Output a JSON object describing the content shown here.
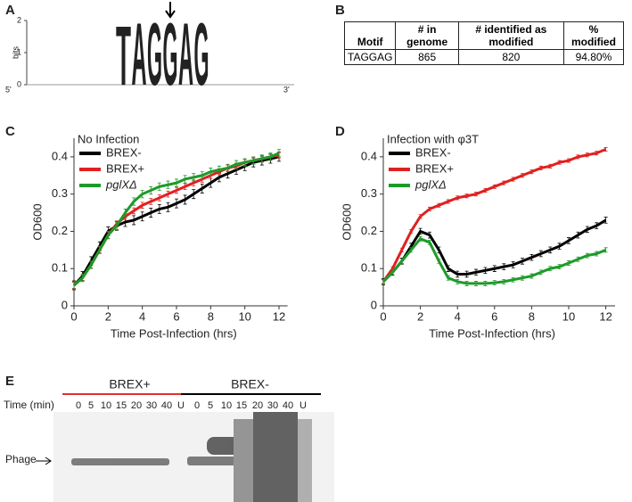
{
  "panel_labels": [
    "A",
    "B",
    "C",
    "D",
    "E"
  ],
  "logo": {
    "y_label": "bits",
    "ylim": [
      0,
      2
    ],
    "yticks": [
      0,
      1,
      2
    ],
    "letters": [
      "T",
      "A",
      "G",
      "G",
      "A",
      "G"
    ],
    "heights": [
      1.9,
      2,
      2,
      2,
      2,
      2
    ],
    "colors": [
      "#d62728",
      "#2ca02c",
      "#f0a500",
      "#f0a500",
      "#2ca02c",
      "#f0a500"
    ],
    "start_label": "5'",
    "end_label": "3'"
  },
  "table": {
    "header": [
      "Motif",
      "# in genome",
      "# identified as modified",
      "% modified"
    ],
    "rows": [
      [
        "TAGGAG",
        "865",
        "820",
        "94.80%"
      ]
    ]
  },
  "chart_data": [
    {
      "type": "line",
      "title": "No Infection",
      "y_label": "OD600",
      "x_label": "Time Post-Infection (hrs)",
      "xlim": [
        0,
        12.5
      ],
      "xticks": [
        0,
        2,
        4,
        6,
        8,
        10,
        12
      ],
      "ylim": [
        0,
        0.45
      ],
      "yticks": [
        0,
        0.1,
        0.2,
        0.3,
        0.4
      ],
      "x": [
        0,
        0.5,
        1,
        1.5,
        2,
        2.5,
        3,
        3.5,
        4,
        4.5,
        5,
        5.5,
        6,
        6.5,
        7,
        7.5,
        8,
        8.5,
        9,
        9.5,
        10,
        10.5,
        11,
        11.5,
        12
      ],
      "series": [
        {
          "name": "BREX-",
          "color": "#000000",
          "error": 0.012,
          "values": [
            0.055,
            0.08,
            0.12,
            0.16,
            0.2,
            0.215,
            0.225,
            0.23,
            0.24,
            0.25,
            0.26,
            0.265,
            0.275,
            0.285,
            0.3,
            0.315,
            0.33,
            0.345,
            0.355,
            0.365,
            0.375,
            0.385,
            0.39,
            0.395,
            0.4
          ]
        },
        {
          "name": "BREX+",
          "color": "#e02020",
          "error": 0.008,
          "values": [
            0.055,
            0.075,
            0.11,
            0.15,
            0.19,
            0.22,
            0.24,
            0.255,
            0.27,
            0.28,
            0.29,
            0.3,
            0.31,
            0.32,
            0.33,
            0.34,
            0.35,
            0.36,
            0.37,
            0.375,
            0.385,
            0.39,
            0.395,
            0.4,
            0.405
          ]
        },
        {
          "name": "pglXΔ",
          "color": "#1e9a2a",
          "error": 0.01,
          "values": [
            0.055,
            0.075,
            0.11,
            0.15,
            0.19,
            0.215,
            0.25,
            0.28,
            0.3,
            0.31,
            0.32,
            0.325,
            0.33,
            0.34,
            0.345,
            0.35,
            0.36,
            0.365,
            0.37,
            0.38,
            0.385,
            0.39,
            0.395,
            0.4,
            0.41
          ]
        }
      ]
    },
    {
      "type": "line",
      "title": "Infection with φ3T",
      "y_label": "OD600",
      "x_label": "Time Post-Infection (hrs)",
      "xlim": [
        0,
        12.5
      ],
      "xticks": [
        0,
        2,
        4,
        6,
        8,
        10,
        12
      ],
      "ylim": [
        0,
        0.45
      ],
      "yticks": [
        0,
        0.1,
        0.2,
        0.3,
        0.4
      ],
      "x": [
        0,
        0.5,
        1,
        1.5,
        2,
        2.5,
        3,
        3.5,
        4,
        4.5,
        5,
        5.5,
        6,
        6.5,
        7,
        7.5,
        8,
        8.5,
        9,
        9.5,
        10,
        10.5,
        11,
        11.5,
        12
      ],
      "series": [
        {
          "name": "BREX-",
          "color": "#000000",
          "error": 0.008,
          "values": [
            0.065,
            0.09,
            0.12,
            0.16,
            0.2,
            0.19,
            0.15,
            0.1,
            0.085,
            0.085,
            0.09,
            0.095,
            0.1,
            0.105,
            0.11,
            0.12,
            0.13,
            0.14,
            0.15,
            0.16,
            0.175,
            0.19,
            0.205,
            0.215,
            0.23
          ]
        },
        {
          "name": "BREX+",
          "color": "#e02020",
          "error": 0.005,
          "values": [
            0.065,
            0.1,
            0.15,
            0.2,
            0.24,
            0.26,
            0.27,
            0.28,
            0.29,
            0.295,
            0.3,
            0.31,
            0.32,
            0.33,
            0.34,
            0.35,
            0.36,
            0.37,
            0.375,
            0.385,
            0.39,
            0.4,
            0.405,
            0.41,
            0.42
          ]
        },
        {
          "name": "pglXΔ",
          "color": "#1e9a2a",
          "error": 0.006,
          "values": [
            0.065,
            0.09,
            0.12,
            0.15,
            0.18,
            0.17,
            0.12,
            0.075,
            0.065,
            0.06,
            0.06,
            0.06,
            0.062,
            0.065,
            0.07,
            0.075,
            0.08,
            0.09,
            0.1,
            0.105,
            0.115,
            0.125,
            0.135,
            0.14,
            0.15
          ]
        }
      ]
    }
  ],
  "gel": {
    "groups": [
      "BREX+",
      "BREX-"
    ],
    "group_colors": [
      "#e03030",
      "#000000"
    ],
    "time_label": "Time (min)",
    "lanes": [
      "0",
      "5",
      "10",
      "15",
      "20",
      "30",
      "40",
      "U"
    ],
    "band_label": "Phage"
  }
}
